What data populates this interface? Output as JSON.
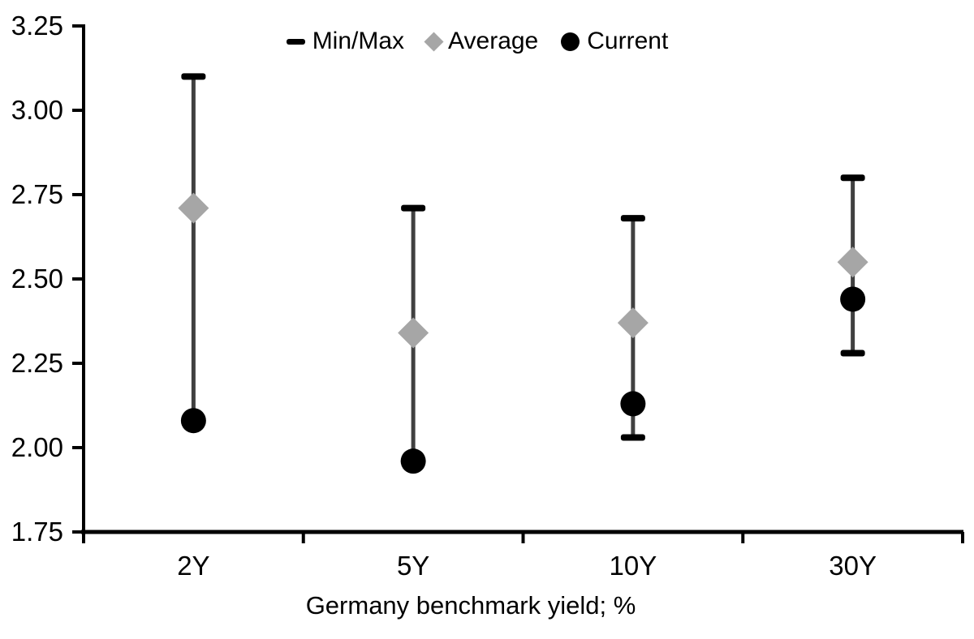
{
  "chart_data": {
    "type": "scatter",
    "subtype": "range-min-max-with-markers",
    "title": "",
    "xlabel": "Germany benchmark yield; %",
    "ylabel": "",
    "ylim": [
      1.75,
      3.25
    ],
    "yticks": [
      1.75,
      2.0,
      2.25,
      2.5,
      2.75,
      3.0,
      3.25
    ],
    "ytick_labels": [
      "1.75",
      "2.00",
      "2.25",
      "2.50",
      "2.75",
      "3.00",
      "3.25"
    ],
    "categories": [
      "2Y",
      "5Y",
      "10Y",
      "30Y"
    ],
    "series": [
      {
        "name": "Min/Max",
        "marker": "dash-cap",
        "min": [
          2.08,
          1.96,
          2.03,
          2.28
        ],
        "max": [
          3.1,
          2.71,
          2.68,
          2.8
        ],
        "min_cap_visible": [
          false,
          false,
          true,
          true
        ]
      },
      {
        "name": "Average",
        "marker": "diamond",
        "values": [
          2.71,
          2.34,
          2.37,
          2.55
        ]
      },
      {
        "name": "Current",
        "marker": "circle",
        "values": [
          2.08,
          1.96,
          2.13,
          2.44
        ]
      }
    ],
    "grid": false,
    "legend_position": "top-center",
    "colors": {
      "minmax": "#000000",
      "range_line": "#404040",
      "average": "#a6a6a6",
      "current": "#000000",
      "axis": "#000000",
      "text": "#000000",
      "background": "#ffffff"
    }
  },
  "legend": {
    "items": [
      {
        "label": "Min/Max"
      },
      {
        "label": "Average"
      },
      {
        "label": "Current"
      }
    ]
  }
}
